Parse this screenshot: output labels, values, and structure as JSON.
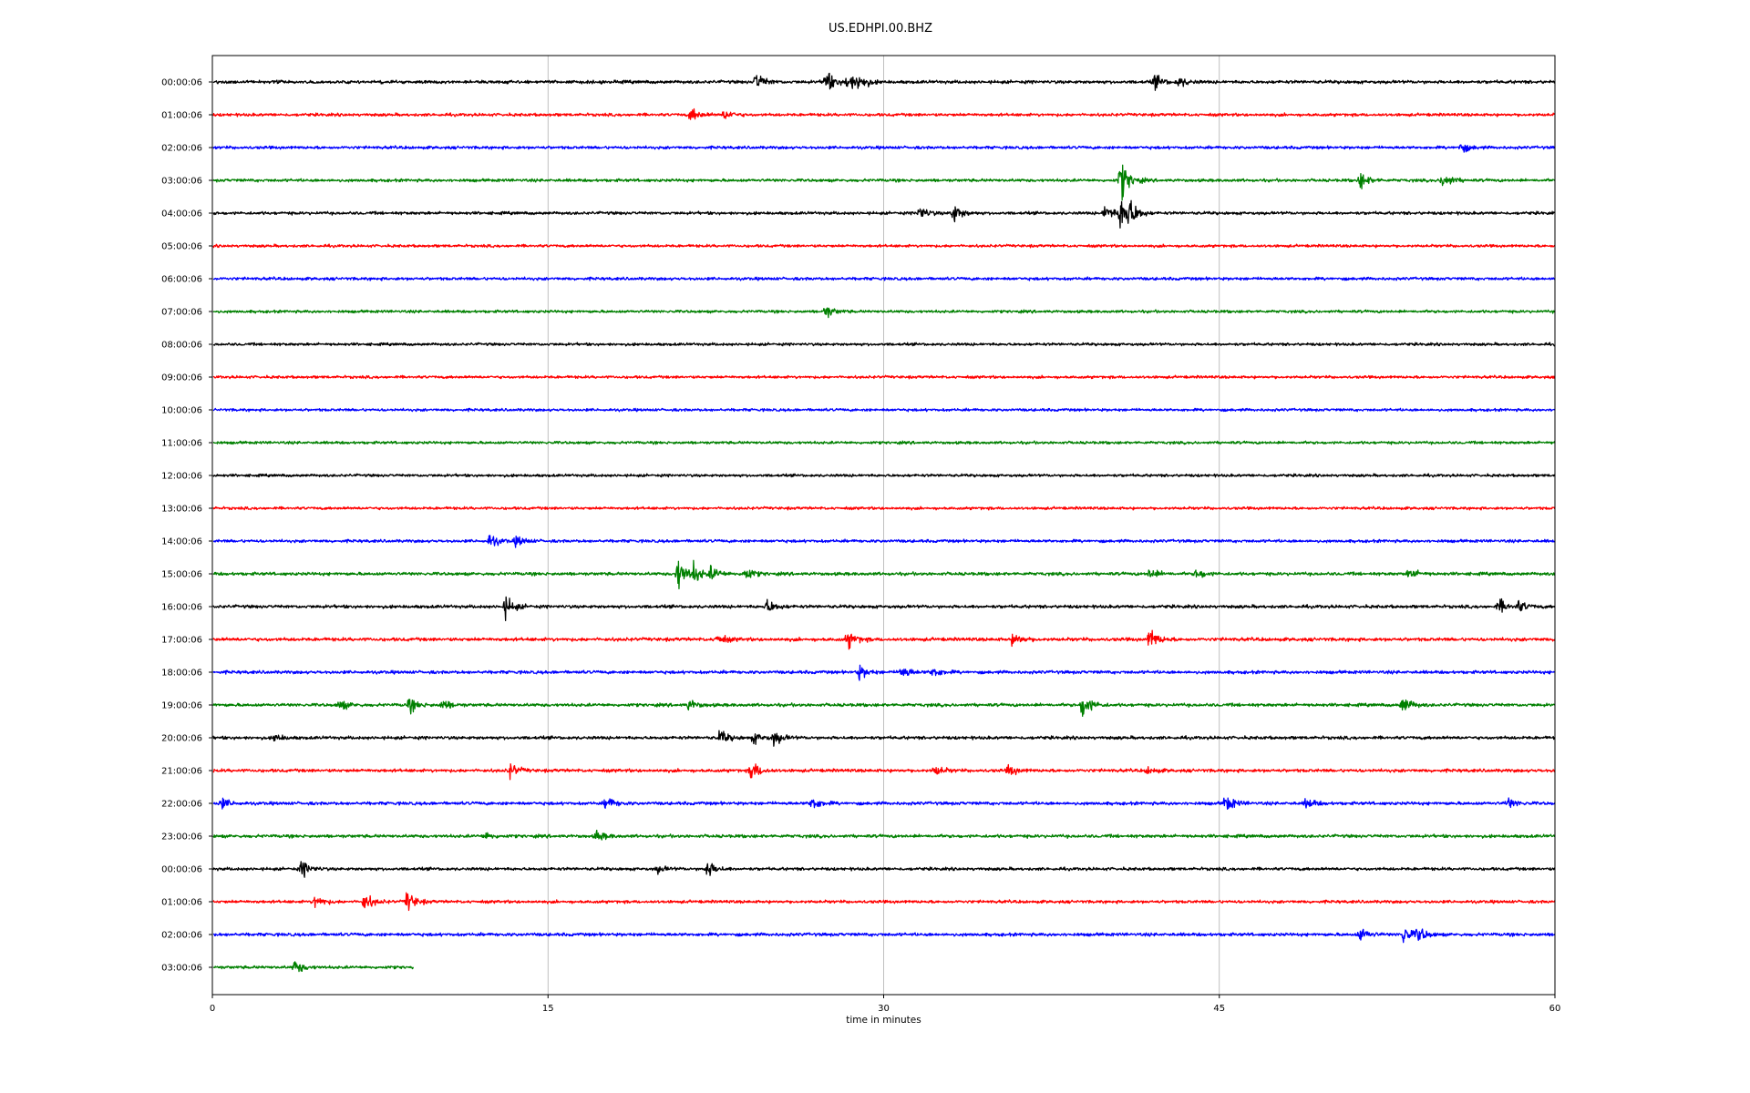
{
  "chart_data": {
    "type": "line",
    "title": "US.EDHPI.00.BHZ",
    "xlabel": "time in minutes",
    "ylabel": "",
    "xlim": [
      0,
      60
    ],
    "xticks": [
      "0",
      "15",
      "30",
      "45",
      "60"
    ],
    "grid": "vertical lines at 15, 30, 45",
    "colors": [
      "#000000",
      "#ff0000",
      "#0000ff",
      "#008000"
    ],
    "series": [
      {
        "label": "00:00:06",
        "color": "#000000",
        "noise": 1.4,
        "end": 60,
        "events": [
          [
            24.3,
            5
          ],
          [
            27.4,
            7
          ],
          [
            28.4,
            6
          ],
          [
            28.9,
            4
          ],
          [
            42.1,
            4
          ],
          [
            43.2,
            3
          ]
        ]
      },
      {
        "label": "01:00:06",
        "color": "#ff0000",
        "noise": 1.3,
        "end": 60,
        "events": [
          [
            21.4,
            4
          ],
          [
            22.9,
            3
          ]
        ]
      },
      {
        "label": "02:00:06",
        "color": "#0000ff",
        "noise": 1.3,
        "end": 60,
        "events": [
          [
            55.8,
            3
          ]
        ]
      },
      {
        "label": "03:00:06",
        "color": "#008000",
        "noise": 1.3,
        "end": 60,
        "events": [
          [
            40.6,
            12
          ],
          [
            51.3,
            5
          ],
          [
            55.0,
            5
          ]
        ]
      },
      {
        "label": "04:00:06",
        "color": "#000000",
        "noise": 1.3,
        "end": 60,
        "events": [
          [
            31.6,
            4
          ],
          [
            33.1,
            6
          ],
          [
            39.9,
            5
          ],
          [
            40.6,
            11
          ],
          [
            41.0,
            6
          ]
        ]
      },
      {
        "label": "05:00:06",
        "color": "#ff0000",
        "noise": 1.2,
        "end": 60,
        "events": []
      },
      {
        "label": "06:00:06",
        "color": "#0000ff",
        "noise": 1.3,
        "end": 60,
        "events": []
      },
      {
        "label": "07:00:06",
        "color": "#008000",
        "noise": 1.2,
        "end": 60,
        "events": [
          [
            27.4,
            4
          ]
        ]
      },
      {
        "label": "08:00:06",
        "color": "#000000",
        "noise": 1.2,
        "end": 60,
        "events": []
      },
      {
        "label": "09:00:06",
        "color": "#ff0000",
        "noise": 1.2,
        "end": 60,
        "events": []
      },
      {
        "label": "10:00:06",
        "color": "#0000ff",
        "noise": 1.2,
        "end": 60,
        "events": []
      },
      {
        "label": "11:00:06",
        "color": "#008000",
        "noise": 1.2,
        "end": 60,
        "events": []
      },
      {
        "label": "12:00:06",
        "color": "#000000",
        "noise": 1.2,
        "end": 60,
        "events": []
      },
      {
        "label": "13:00:06",
        "color": "#ff0000",
        "noise": 1.2,
        "end": 60,
        "events": []
      },
      {
        "label": "14:00:06",
        "color": "#0000ff",
        "noise": 1.3,
        "end": 60,
        "events": [
          [
            12.4,
            4
          ],
          [
            13.6,
            3
          ]
        ]
      },
      {
        "label": "15:00:06",
        "color": "#008000",
        "noise": 1.4,
        "end": 60,
        "events": [
          [
            20.8,
            10
          ],
          [
            21.5,
            5
          ],
          [
            22.3,
            4
          ],
          [
            23.8,
            4
          ],
          [
            41.9,
            3
          ],
          [
            44.0,
            3
          ],
          [
            53.5,
            3
          ]
        ]
      },
      {
        "label": "16:00:06",
        "color": "#000000",
        "noise": 1.4,
        "end": 60,
        "events": [
          [
            13.1,
            6
          ],
          [
            24.8,
            4
          ],
          [
            57.5,
            4
          ],
          [
            58.4,
            3
          ]
        ]
      },
      {
        "label": "17:00:06",
        "color": "#ff0000",
        "noise": 1.5,
        "end": 60,
        "events": [
          [
            22.6,
            3
          ],
          [
            28.4,
            5
          ],
          [
            35.8,
            4
          ],
          [
            41.9,
            6
          ]
        ]
      },
      {
        "label": "18:00:06",
        "color": "#0000ff",
        "noise": 1.4,
        "end": 60,
        "events": [
          [
            28.9,
            4
          ],
          [
            30.8,
            4
          ],
          [
            32.2,
            3
          ]
        ]
      },
      {
        "label": "19:00:06",
        "color": "#008000",
        "noise": 1.4,
        "end": 60,
        "events": [
          [
            5.7,
            3
          ],
          [
            8.8,
            4
          ],
          [
            10.3,
            3
          ],
          [
            21.3,
            3
          ],
          [
            38.9,
            8
          ],
          [
            53.2,
            5
          ]
        ]
      },
      {
        "label": "20:00:06",
        "color": "#000000",
        "noise": 1.4,
        "end": 60,
        "events": [
          [
            2.8,
            2
          ],
          [
            22.7,
            4
          ],
          [
            24.2,
            3
          ],
          [
            25.1,
            4
          ]
        ]
      },
      {
        "label": "21:00:06",
        "color": "#ff0000",
        "noise": 1.4,
        "end": 60,
        "events": [
          [
            13.3,
            4
          ],
          [
            24.1,
            6
          ],
          [
            32.3,
            3
          ],
          [
            35.6,
            3
          ],
          [
            41.8,
            2
          ]
        ]
      },
      {
        "label": "22:00:06",
        "color": "#0000ff",
        "noise": 1.4,
        "end": 60,
        "events": [
          [
            0.4,
            3
          ],
          [
            17.6,
            4
          ],
          [
            26.8,
            4
          ],
          [
            45.3,
            5
          ],
          [
            48.9,
            3
          ],
          [
            57.9,
            3
          ]
        ]
      },
      {
        "label": "23:00:06",
        "color": "#008000",
        "noise": 1.4,
        "end": 60,
        "events": [
          [
            12.2,
            2
          ],
          [
            17.2,
            3
          ]
        ]
      },
      {
        "label": "00:00:06",
        "color": "#000000",
        "noise": 1.3,
        "end": 60,
        "events": [
          [
            4.0,
            5
          ],
          [
            19.9,
            2
          ],
          [
            22.1,
            5
          ]
        ]
      },
      {
        "label": "01:00:06",
        "color": "#ff0000",
        "noise": 1.3,
        "end": 60,
        "events": [
          [
            4.6,
            4
          ],
          [
            6.8,
            5
          ],
          [
            8.7,
            6
          ]
        ]
      },
      {
        "label": "02:00:06",
        "color": "#0000ff",
        "noise": 1.4,
        "end": 60,
        "events": [
          [
            51.3,
            4
          ],
          [
            53.2,
            6
          ],
          [
            53.9,
            4
          ]
        ]
      },
      {
        "label": "03:00:06",
        "color": "#008000",
        "noise": 1.3,
        "end": 9.0,
        "events": [
          [
            3.7,
            4
          ]
        ]
      }
    ]
  }
}
